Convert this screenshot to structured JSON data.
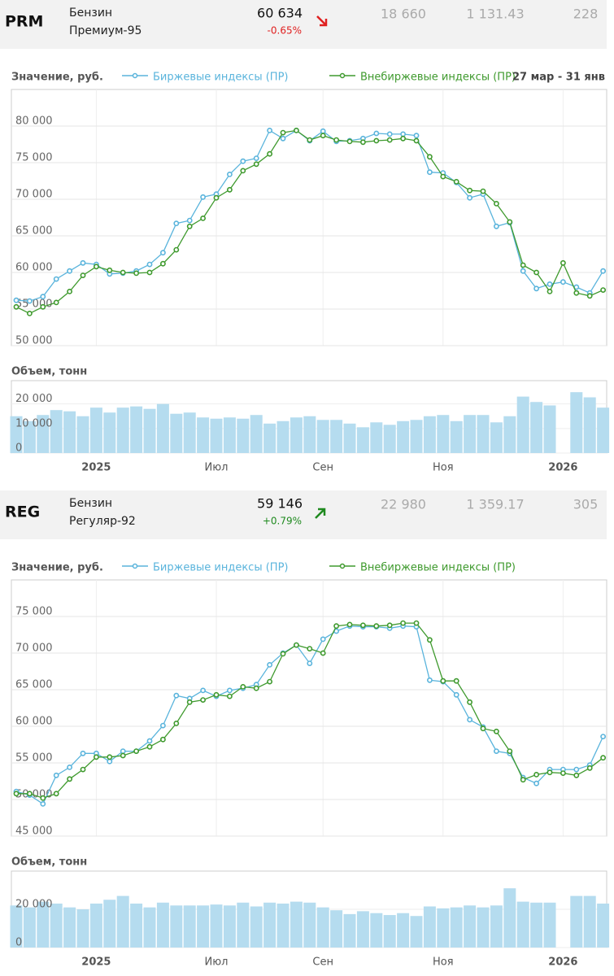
{
  "panels": [
    {
      "ticker": "PRM",
      "name_line1": "Бензин",
      "name_line2": "Премиум-95",
      "price": "60 634",
      "change": "-0.65%",
      "direction": "down",
      "stats": [
        "18 660",
        "1 131.43",
        "228"
      ]
    },
    {
      "ticker": "REG",
      "name_line1": "Бензин",
      "name_line2": "Регуляр-92",
      "price": "59 146",
      "change": "+0.79%",
      "direction": "up",
      "stats": [
        "22 980",
        "1 359.17",
        "305"
      ]
    }
  ],
  "chart_data": [
    {
      "type": "line",
      "y_label": "Значение, руб.",
      "date_range": "27 мар - 31 янв",
      "ylim": [
        50000,
        85000
      ],
      "yticks": [
        {
          "value": 50000,
          "label": "50 000"
        },
        {
          "value": 55000,
          "label": "55 000"
        },
        {
          "value": 60000,
          "label": "60 000"
        },
        {
          "value": 65000,
          "label": "65 000"
        },
        {
          "value": 70000,
          "label": "70 000"
        },
        {
          "value": 75000,
          "label": "75 000"
        },
        {
          "value": 80000,
          "label": "80 000"
        }
      ],
      "grid": true,
      "series": [
        {
          "name": "Биржевые индексы (ПР)",
          "color": "#5ab4dc",
          "values": [
            56200,
            56100,
            56700,
            59100,
            60200,
            61300,
            61100,
            59800,
            59900,
            60200,
            61100,
            62700,
            66700,
            67100,
            70300,
            70700,
            73400,
            75200,
            75600,
            79400,
            78300,
            79400,
            78000,
            79300,
            77900,
            78000,
            78300,
            79000,
            78900,
            78900,
            78700,
            73700,
            73600,
            72300,
            70200,
            70700,
            66300,
            66800,
            60200,
            57800,
            58400,
            58700,
            58000,
            57200,
            60200
          ]
        },
        {
          "name": "Внебиржевые индексы (ПР)",
          "color": "#3f9a2e",
          "values": [
            55300,
            54400,
            55300,
            55900,
            57400,
            59600,
            60800,
            60300,
            60000,
            59900,
            60000,
            61200,
            63100,
            66300,
            67400,
            70200,
            71300,
            73900,
            74800,
            76200,
            79100,
            79400,
            78100,
            78700,
            78100,
            77900,
            77800,
            78000,
            78100,
            78300,
            78000,
            75800,
            73100,
            72400,
            71200,
            71100,
            69400,
            66900,
            61000,
            60000,
            57400,
            61300,
            57200,
            56800,
            57600
          ]
        }
      ]
    },
    {
      "type": "bar",
      "y_label": "Объем, тонн",
      "color": "#b5dcef",
      "categories": [
        null,
        null,
        null,
        null,
        null,
        null,
        "2025",
        null,
        null,
        null,
        null,
        null,
        null,
        null,
        null,
        "Июл",
        null,
        null,
        null,
        null,
        null,
        null,
        null,
        "Сен",
        null,
        null,
        null,
        null,
        null,
        null,
        null,
        null,
        "Ноя",
        null,
        null,
        null,
        null,
        null,
        null,
        null,
        null,
        "2026",
        null,
        null,
        null
      ],
      "ylim": [
        0,
        29500
      ],
      "yticks": [
        0,
        {
          "value": 10000,
          "label": "10 000"
        },
        {
          "value": 20000,
          "label": "20 000"
        }
      ],
      "grid": true,
      "values": [
        15000,
        13000,
        15500,
        17500,
        17000,
        15000,
        18500,
        16500,
        18500,
        19000,
        18000,
        20000,
        16000,
        16500,
        14500,
        14000,
        14500,
        14000,
        15500,
        12000,
        13000,
        14500,
        15000,
        13500,
        13500,
        12000,
        10500,
        12500,
        11500,
        13000,
        13500,
        15000,
        15500,
        13000,
        15500,
        15500,
        12500,
        15000,
        23000,
        20800,
        19400,
        null,
        24800,
        22700,
        18500
      ]
    },
    {
      "type": "line",
      "y_label": "Значение, руб.",
      "ylim": [
        45000,
        80000
      ],
      "yticks": [
        {
          "value": 45000,
          "label": "45 000"
        },
        {
          "value": 50000,
          "label": "50 000"
        },
        {
          "value": 55000,
          "label": "55 000"
        },
        {
          "value": 60000,
          "label": "60 000"
        },
        {
          "value": 65000,
          "label": "65 000"
        },
        {
          "value": 70000,
          "label": "70 000"
        },
        {
          "value": 75000,
          "label": "75 000"
        }
      ],
      "grid": true,
      "series": [
        {
          "name": "Биржевые индексы (ПР)",
          "color": "#5ab4dc",
          "values": [
            51100,
            50600,
            49400,
            53300,
            54400,
            56300,
            56300,
            55200,
            56600,
            56600,
            58000,
            60100,
            64200,
            63800,
            64900,
            64100,
            64900,
            65200,
            65700,
            68400,
            70000,
            71100,
            68600,
            71900,
            73000,
            73700,
            73600,
            73600,
            73400,
            73700,
            73600,
            66300,
            66100,
            64300,
            60900,
            59900,
            56600,
            56300,
            53000,
            52200,
            54100,
            54100,
            54100,
            54700,
            58600
          ]
        },
        {
          "name": "Внебиржевые индексы (ПР)",
          "color": "#3f9a2e",
          "values": [
            50800,
            50800,
            50200,
            50800,
            52800,
            54100,
            55800,
            55800,
            56000,
            56600,
            57200,
            58200,
            60400,
            63300,
            63600,
            64300,
            64100,
            65400,
            65200,
            66100,
            69900,
            71100,
            70600,
            70000,
            73700,
            73900,
            73800,
            73700,
            73800,
            74100,
            74100,
            71800,
            66200,
            66200,
            63300,
            59700,
            59300,
            56600,
            52700,
            53400,
            53700,
            53600,
            53300,
            54300,
            55700
          ]
        }
      ]
    },
    {
      "type": "bar",
      "y_label": "Объем, тонн",
      "color": "#b5dcef",
      "categories": [
        null,
        null,
        null,
        null,
        null,
        null,
        "2025",
        null,
        null,
        null,
        null,
        null,
        null,
        null,
        null,
        "Июл",
        null,
        null,
        null,
        null,
        null,
        null,
        null,
        "Сен",
        null,
        null,
        null,
        null,
        null,
        null,
        null,
        null,
        "Ноя",
        null,
        null,
        null,
        null,
        null,
        null,
        null,
        null,
        "2026",
        null,
        null,
        null
      ],
      "ylim": [
        0,
        40000
      ],
      "yticks": [
        0,
        {
          "value": 20000,
          "label": "20 000"
        }
      ],
      "grid": true,
      "values": [
        22000,
        21000,
        24000,
        23000,
        21000,
        20000,
        23000,
        25000,
        27000,
        23000,
        21000,
        23500,
        22000,
        22000,
        22000,
        22500,
        22000,
        23500,
        21500,
        23500,
        23000,
        24000,
        23500,
        21000,
        19500,
        17500,
        19000,
        18000,
        17000,
        18000,
        16500,
        21500,
        20500,
        21000,
        22000,
        21000,
        22000,
        31000,
        24000,
        23500,
        23500,
        null,
        27000,
        27000,
        23000
      ]
    }
  ]
}
